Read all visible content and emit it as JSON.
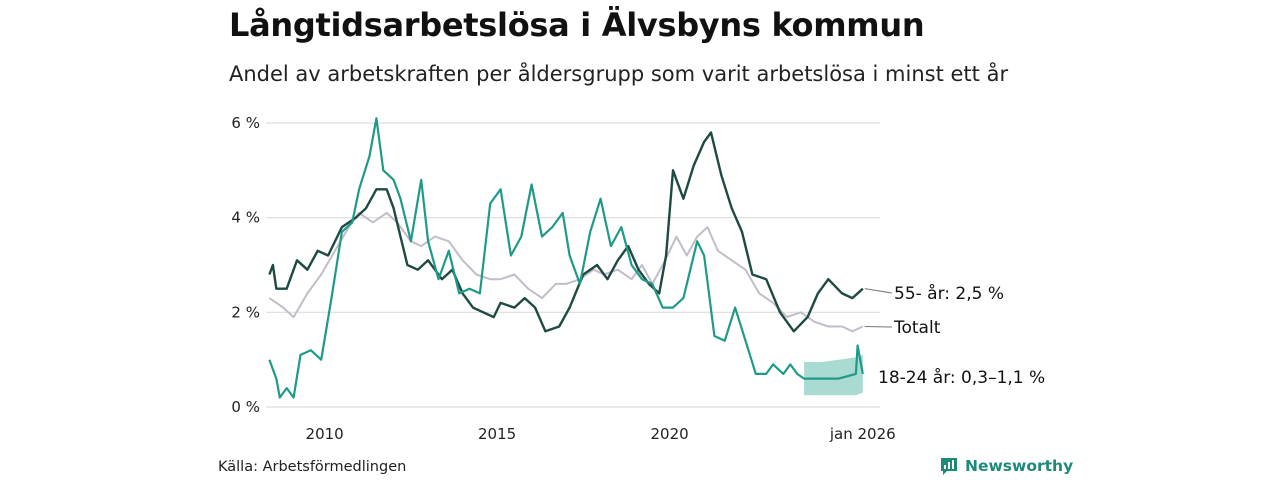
{
  "header": {
    "title": "Långtidsarbetslösa i Älvsbyns kommun",
    "subtitle": "Andel av arbetskraften per åldersgrupp som varit arbetslösa i minst ett år"
  },
  "footer": {
    "source": "Källa: Arbetsförmedlingen",
    "brand": "Newsworthy"
  },
  "colors": {
    "age55": "#1e4a43",
    "total": "#c3bcc9",
    "age18_24": "#1f9a87",
    "band": "#7cc7bb",
    "grid": "#dddddd"
  },
  "chart_data": {
    "type": "line",
    "title": "Långtidsarbetslösa i Älvsbyns kommun",
    "ylim": [
      0,
      6
    ],
    "xlim": [
      2008.3,
      2026.1
    ],
    "yticks": [
      {
        "v": 0,
        "label": "0 %"
      },
      {
        "v": 2,
        "label": "2 %"
      },
      {
        "v": 4,
        "label": "4 %"
      },
      {
        "v": 6,
        "label": "6 %"
      }
    ],
    "xticks": [
      {
        "v": 2010,
        "label": "2010"
      },
      {
        "v": 2015,
        "label": "2015"
      },
      {
        "v": 2020,
        "label": "2020"
      },
      {
        "v": 2025.6,
        "label": "jan 2026"
      }
    ],
    "series": [
      {
        "name": "Totalt",
        "key": "total",
        "end_label": "Totalt",
        "points": [
          [
            2008.4,
            2.3
          ],
          [
            2008.8,
            2.1
          ],
          [
            2009.1,
            1.9
          ],
          [
            2009.5,
            2.4
          ],
          [
            2009.9,
            2.8
          ],
          [
            2010.3,
            3.3
          ],
          [
            2010.7,
            3.8
          ],
          [
            2011.0,
            4.1
          ],
          [
            2011.4,
            3.9
          ],
          [
            2011.8,
            4.1
          ],
          [
            2012.1,
            3.9
          ],
          [
            2012.5,
            3.5
          ],
          [
            2012.8,
            3.4
          ],
          [
            2013.2,
            3.6
          ],
          [
            2013.6,
            3.5
          ],
          [
            2014.0,
            3.1
          ],
          [
            2014.4,
            2.8
          ],
          [
            2014.8,
            2.7
          ],
          [
            2015.1,
            2.7
          ],
          [
            2015.5,
            2.8
          ],
          [
            2015.9,
            2.5
          ],
          [
            2016.3,
            2.3
          ],
          [
            2016.7,
            2.6
          ],
          [
            2017.0,
            2.6
          ],
          [
            2017.4,
            2.7
          ],
          [
            2017.8,
            2.9
          ],
          [
            2018.1,
            2.8
          ],
          [
            2018.5,
            2.9
          ],
          [
            2018.9,
            2.7
          ],
          [
            2019.2,
            3.0
          ],
          [
            2019.5,
            2.6
          ],
          [
            2019.8,
            3.0
          ],
          [
            2020.2,
            3.6
          ],
          [
            2020.5,
            3.2
          ],
          [
            2020.8,
            3.6
          ],
          [
            2021.1,
            3.8
          ],
          [
            2021.4,
            3.3
          ],
          [
            2021.8,
            3.1
          ],
          [
            2022.2,
            2.9
          ],
          [
            2022.6,
            2.4
          ],
          [
            2023.0,
            2.2
          ],
          [
            2023.4,
            1.9
          ],
          [
            2023.8,
            2.0
          ],
          [
            2024.2,
            1.8
          ],
          [
            2024.6,
            1.7
          ],
          [
            2025.0,
            1.7
          ],
          [
            2025.3,
            1.6
          ],
          [
            2025.6,
            1.7
          ]
        ]
      },
      {
        "name": "55- år",
        "key": "age55",
        "end_label": "55- år: 2,5 %",
        "points": [
          [
            2008.4,
            2.8
          ],
          [
            2008.5,
            3.0
          ],
          [
            2008.6,
            2.5
          ],
          [
            2008.9,
            2.5
          ],
          [
            2009.2,
            3.1
          ],
          [
            2009.5,
            2.9
          ],
          [
            2009.8,
            3.3
          ],
          [
            2010.1,
            3.2
          ],
          [
            2010.5,
            3.8
          ],
          [
            2010.9,
            4.0
          ],
          [
            2011.2,
            4.2
          ],
          [
            2011.5,
            4.6
          ],
          [
            2011.8,
            4.6
          ],
          [
            2012.0,
            4.2
          ],
          [
            2012.2,
            3.6
          ],
          [
            2012.4,
            3.0
          ],
          [
            2012.7,
            2.9
          ],
          [
            2013.0,
            3.1
          ],
          [
            2013.4,
            2.7
          ],
          [
            2013.7,
            2.9
          ],
          [
            2014.0,
            2.4
          ],
          [
            2014.3,
            2.1
          ],
          [
            2014.6,
            2.0
          ],
          [
            2014.9,
            1.9
          ],
          [
            2015.1,
            2.2
          ],
          [
            2015.5,
            2.1
          ],
          [
            2015.8,
            2.3
          ],
          [
            2016.1,
            2.1
          ],
          [
            2016.4,
            1.6
          ],
          [
            2016.8,
            1.7
          ],
          [
            2017.1,
            2.1
          ],
          [
            2017.5,
            2.8
          ],
          [
            2017.9,
            3.0
          ],
          [
            2018.2,
            2.7
          ],
          [
            2018.5,
            3.1
          ],
          [
            2018.8,
            3.4
          ],
          [
            2019.1,
            2.9
          ],
          [
            2019.4,
            2.6
          ],
          [
            2019.7,
            2.4
          ],
          [
            2019.9,
            3.2
          ],
          [
            2020.1,
            5.0
          ],
          [
            2020.4,
            4.4
          ],
          [
            2020.7,
            5.1
          ],
          [
            2021.0,
            5.6
          ],
          [
            2021.2,
            5.8
          ],
          [
            2021.5,
            4.9
          ],
          [
            2021.8,
            4.2
          ],
          [
            2022.1,
            3.7
          ],
          [
            2022.4,
            2.8
          ],
          [
            2022.8,
            2.7
          ],
          [
            2023.2,
            2.0
          ],
          [
            2023.6,
            1.6
          ],
          [
            2024.0,
            1.9
          ],
          [
            2024.3,
            2.4
          ],
          [
            2024.6,
            2.7
          ],
          [
            2025.0,
            2.4
          ],
          [
            2025.3,
            2.3
          ],
          [
            2025.6,
            2.5
          ]
        ]
      },
      {
        "name": "18-24 år",
        "key": "age18_24",
        "end_label": "18-24 år: 0,3–1,1 %",
        "points": [
          [
            2008.4,
            1.0
          ],
          [
            2008.6,
            0.6
          ],
          [
            2008.7,
            0.2
          ],
          [
            2008.9,
            0.4
          ],
          [
            2009.1,
            0.2
          ],
          [
            2009.3,
            1.1
          ],
          [
            2009.6,
            1.2
          ],
          [
            2009.9,
            1.0
          ],
          [
            2010.2,
            2.3
          ],
          [
            2010.5,
            3.7
          ],
          [
            2010.8,
            3.9
          ],
          [
            2011.0,
            4.6
          ],
          [
            2011.3,
            5.3
          ],
          [
            2011.5,
            6.1
          ],
          [
            2011.7,
            5.0
          ],
          [
            2012.0,
            4.8
          ],
          [
            2012.2,
            4.4
          ],
          [
            2012.5,
            3.5
          ],
          [
            2012.8,
            4.8
          ],
          [
            2013.0,
            3.5
          ],
          [
            2013.3,
            2.7
          ],
          [
            2013.6,
            3.3
          ],
          [
            2013.9,
            2.4
          ],
          [
            2014.2,
            2.5
          ],
          [
            2014.5,
            2.4
          ],
          [
            2014.8,
            4.3
          ],
          [
            2015.1,
            4.6
          ],
          [
            2015.4,
            3.2
          ],
          [
            2015.7,
            3.6
          ],
          [
            2016.0,
            4.7
          ],
          [
            2016.3,
            3.6
          ],
          [
            2016.6,
            3.8
          ],
          [
            2016.9,
            4.1
          ],
          [
            2017.1,
            3.2
          ],
          [
            2017.4,
            2.6
          ],
          [
            2017.7,
            3.7
          ],
          [
            2018.0,
            4.4
          ],
          [
            2018.3,
            3.4
          ],
          [
            2018.6,
            3.8
          ],
          [
            2018.9,
            3.0
          ],
          [
            2019.2,
            2.7
          ],
          [
            2019.5,
            2.6
          ],
          [
            2019.8,
            2.1
          ],
          [
            2020.1,
            2.1
          ],
          [
            2020.4,
            2.3
          ],
          [
            2020.8,
            3.5
          ],
          [
            2021.0,
            3.2
          ],
          [
            2021.3,
            1.5
          ],
          [
            2021.6,
            1.4
          ],
          [
            2021.9,
            2.1
          ],
          [
            2022.2,
            1.4
          ],
          [
            2022.5,
            0.7
          ],
          [
            2022.8,
            0.7
          ],
          [
            2023.0,
            0.9
          ],
          [
            2023.3,
            0.7
          ],
          [
            2023.5,
            0.9
          ],
          [
            2023.7,
            0.7
          ],
          [
            2023.9,
            0.6
          ],
          [
            2024.4,
            0.6
          ],
          [
            2024.9,
            0.6
          ],
          [
            2025.4,
            0.7
          ],
          [
            2025.45,
            1.3
          ],
          [
            2025.6,
            0.7
          ]
        ]
      }
    ],
    "band": {
      "name": "18-24 år osäkerhetsintervall",
      "x": [
        2023.9,
        2024.4,
        2024.9,
        2025.4,
        2025.6
      ],
      "lower": [
        0.25,
        0.25,
        0.25,
        0.25,
        0.3
      ],
      "upper": [
        0.95,
        0.95,
        1.0,
        1.05,
        1.1
      ]
    }
  }
}
